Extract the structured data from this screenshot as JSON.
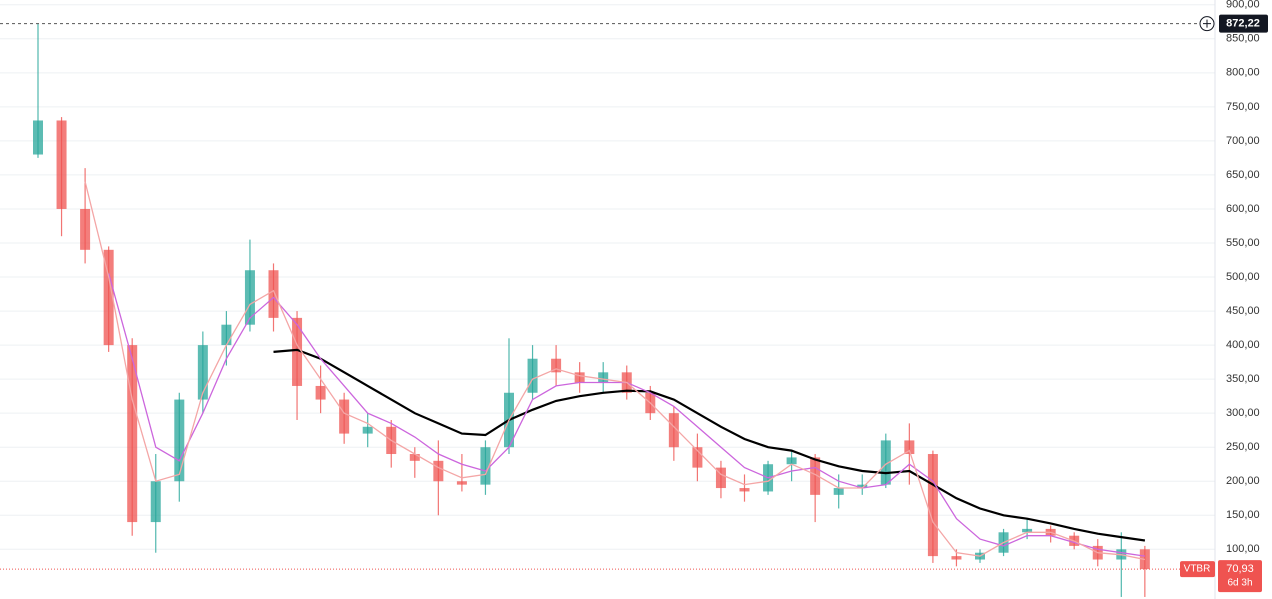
{
  "chart_data": {
    "type": "candlestick",
    "symbol": "VTBR",
    "countdown": "6d 3h",
    "up_color": "#26a69a",
    "down_color": "#ef5350",
    "grid": true,
    "ylim": [
      27,
      907
    ],
    "yticks": [
      {
        "value": 100,
        "label": "100,00"
      },
      {
        "value": 150,
        "label": "150,00"
      },
      {
        "value": 200,
        "label": "200,00"
      },
      {
        "value": 250,
        "label": "250,00"
      },
      {
        "value": 300,
        "label": "300,00"
      },
      {
        "value": 350,
        "label": "350,00"
      },
      {
        "value": 400,
        "label": "400,00"
      },
      {
        "value": 450,
        "label": "450,00"
      },
      {
        "value": 500,
        "label": "500,00"
      },
      {
        "value": 550,
        "label": "550,00"
      },
      {
        "value": 600,
        "label": "600,00"
      },
      {
        "value": 650,
        "label": "650,00"
      },
      {
        "value": 700,
        "label": "700,00"
      },
      {
        "value": 750,
        "label": "750,00"
      },
      {
        "value": 800,
        "label": "800,00"
      },
      {
        "value": 850,
        "label": "850,00"
      },
      {
        "value": 900,
        "label": "900,00"
      }
    ],
    "crosshair": {
      "value": 872.22,
      "label": "872,22"
    },
    "last_price": {
      "value": 70.93,
      "label": "70,93"
    },
    "open": [
      680,
      730,
      600,
      540,
      400,
      140,
      200,
      320,
      400,
      430,
      510,
      440,
      340,
      320,
      270,
      280,
      240,
      230,
      200,
      195,
      250,
      330,
      380,
      360,
      345,
      360,
      330,
      300,
      250,
      220,
      190,
      185,
      225,
      235,
      180,
      190,
      195,
      260,
      240,
      90,
      85,
      95,
      125,
      130,
      120,
      105,
      85,
      100
    ],
    "high": [
      872,
      735,
      660,
      545,
      410,
      240,
      330,
      420,
      450,
      555,
      520,
      450,
      370,
      330,
      300,
      290,
      250,
      260,
      240,
      260,
      410,
      400,
      400,
      375,
      375,
      370,
      340,
      310,
      270,
      230,
      210,
      230,
      245,
      240,
      210,
      210,
      270,
      285,
      245,
      100,
      100,
      130,
      145,
      135,
      125,
      115,
      125,
      105
    ],
    "low": [
      675,
      560,
      520,
      390,
      120,
      95,
      170,
      300,
      370,
      420,
      420,
      290,
      300,
      255,
      250,
      220,
      205,
      150,
      185,
      180,
      240,
      320,
      340,
      330,
      330,
      320,
      290,
      230,
      200,
      175,
      170,
      180,
      200,
      140,
      160,
      180,
      190,
      195,
      80,
      75,
      80,
      90,
      115,
      110,
      100,
      75,
      30,
      30
    ],
    "close": [
      730,
      600,
      540,
      400,
      140,
      200,
      320,
      400,
      430,
      510,
      440,
      340,
      320,
      270,
      280,
      240,
      230,
      200,
      195,
      250,
      330,
      380,
      360,
      345,
      360,
      330,
      300,
      250,
      220,
      190,
      185,
      225,
      235,
      180,
      190,
      195,
      260,
      240,
      90,
      85,
      95,
      125,
      130,
      120,
      105,
      85,
      100,
      70.93
    ],
    "series": [
      {
        "color": "#000000",
        "values": [
          null,
          null,
          null,
          null,
          null,
          null,
          null,
          null,
          null,
          null,
          390,
          393,
          380,
          360,
          340,
          320,
          300,
          285,
          270,
          268,
          290,
          305,
          318,
          325,
          330,
          333,
          332,
          320,
          300,
          280,
          262,
          250,
          245,
          232,
          222,
          215,
          212,
          215,
          195,
          175,
          160,
          150,
          145,
          138,
          130,
          123,
          118,
          113
        ]
      },
      {
        "color": "#cc66dd",
        "values": [
          null,
          null,
          null,
          505,
          380,
          250,
          230,
          300,
          380,
          440,
          470,
          430,
          380,
          340,
          300,
          285,
          265,
          240,
          225,
          215,
          250,
          320,
          340,
          345,
          345,
          345,
          330,
          310,
          280,
          250,
          220,
          205,
          215,
          220,
          200,
          190,
          195,
          225,
          200,
          145,
          115,
          105,
          120,
          120,
          110,
          100,
          95,
          90
        ]
      },
      {
        "color": "#f4a6a6",
        "values": [
          null,
          null,
          640,
          500,
          320,
          200,
          210,
          330,
          400,
          460,
          480,
          400,
          350,
          300,
          285,
          260,
          240,
          220,
          205,
          210,
          290,
          350,
          365,
          355,
          350,
          345,
          315,
          280,
          245,
          210,
          195,
          200,
          225,
          210,
          190,
          190,
          225,
          245,
          140,
          95,
          90,
          110,
          125,
          125,
          112,
          95,
          92,
          85
        ]
      }
    ]
  }
}
